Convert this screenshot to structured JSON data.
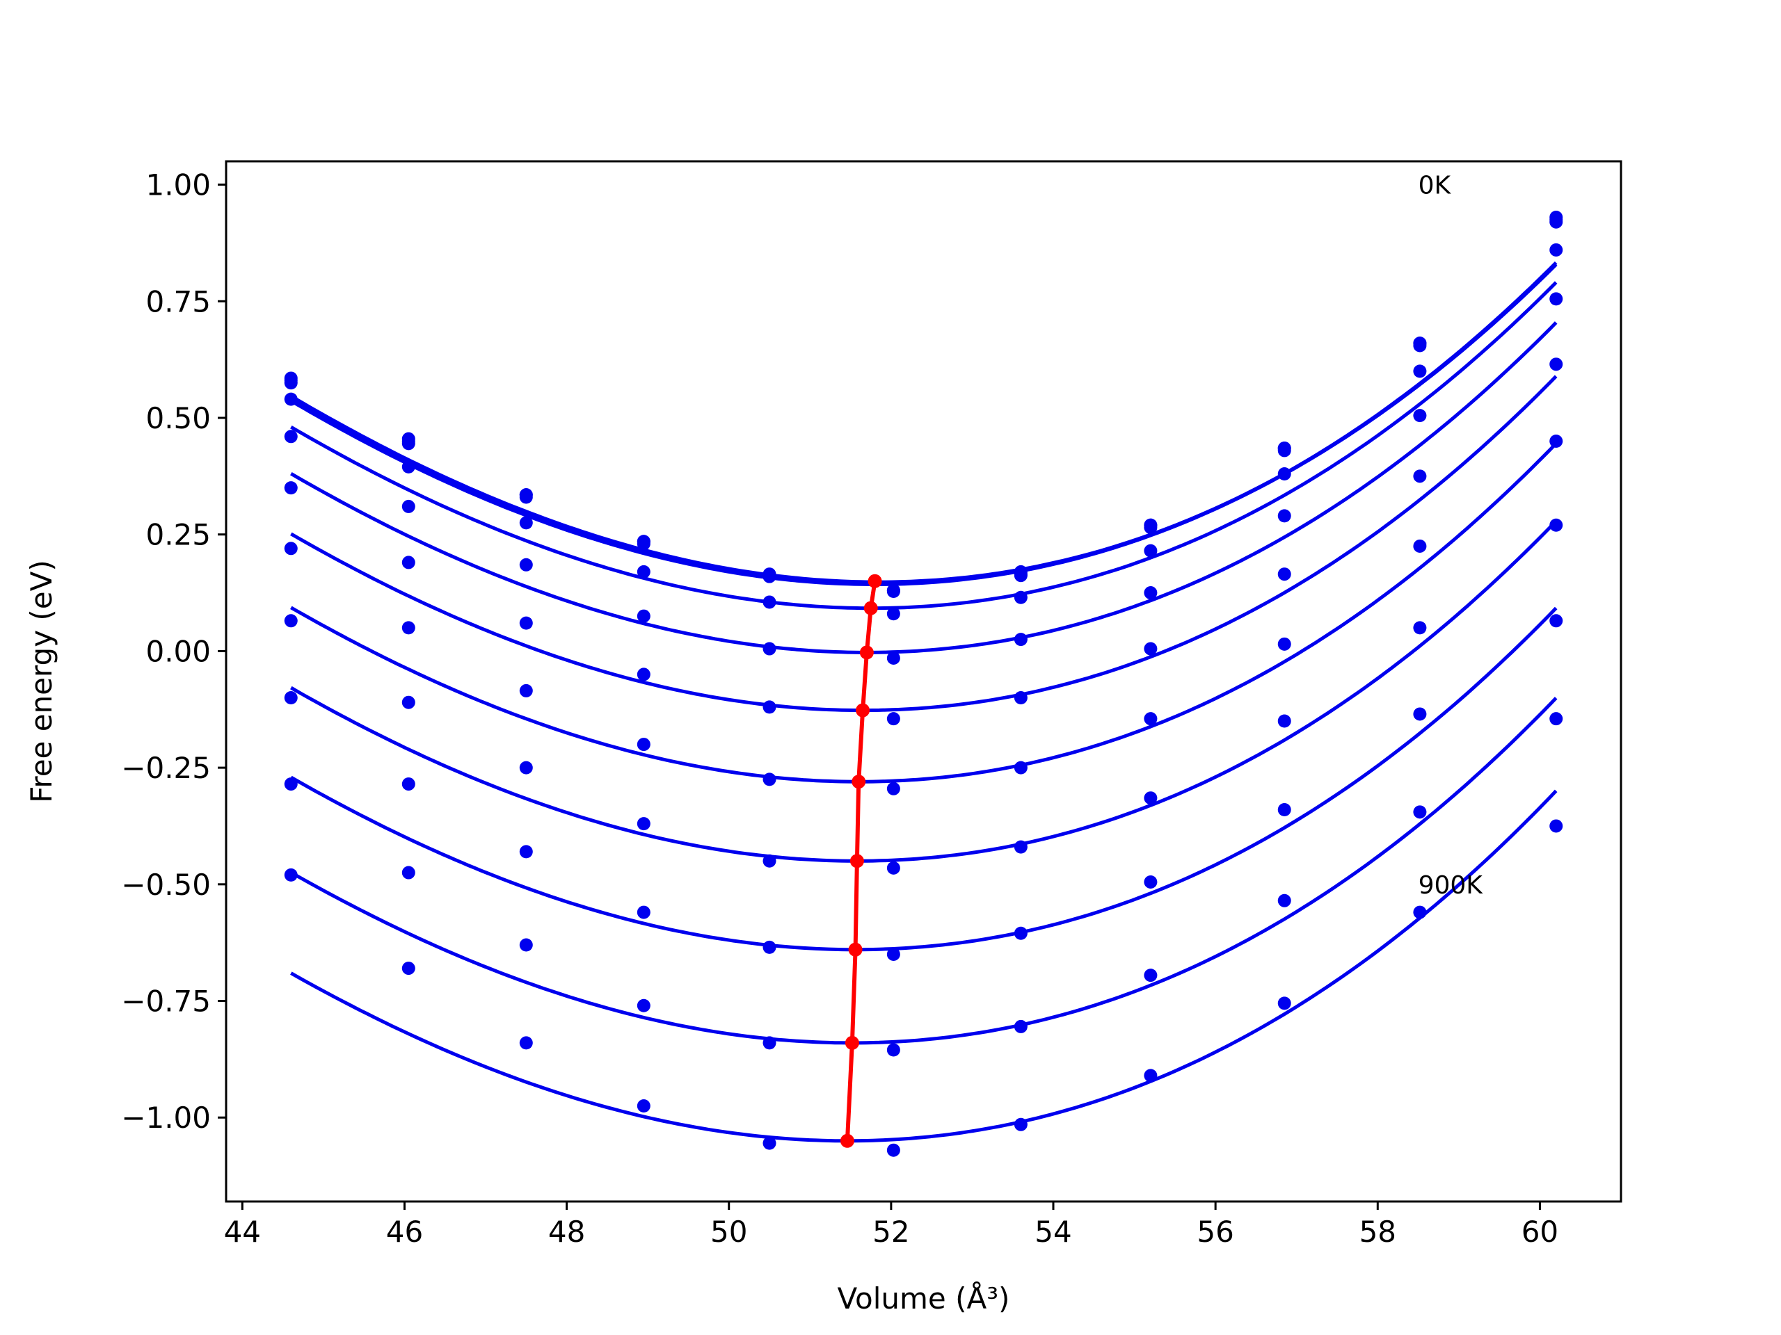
{
  "chart_data": {
    "type": "scatter",
    "title": "",
    "xlabel": "Volume (Å³)",
    "ylabel": "Free energy (eV)",
    "xlim": [
      43.8,
      61.0
    ],
    "ylim": [
      -1.18,
      1.05
    ],
    "xticks": [
      44,
      46,
      48,
      50,
      52,
      54,
      56,
      58,
      60
    ],
    "yticks": [
      -1.0,
      -0.75,
      -0.5,
      -0.25,
      0.0,
      0.25,
      0.5,
      0.75,
      1.0
    ],
    "xtick_labels": [
      "44",
      "46",
      "48",
      "50",
      "52",
      "54",
      "56",
      "58",
      "60"
    ],
    "ytick_labels": [
      "−1.00",
      "−0.75",
      "−0.50",
      "−0.25",
      "0.00",
      "0.25",
      "0.50",
      "0.75",
      "1.00"
    ],
    "grid": false,
    "legend": "none",
    "annotations": [
      {
        "text": "0K",
        "x": 58.5,
        "y": 1.0
      },
      {
        "text": "900K",
        "x": 58.5,
        "y": -0.5
      }
    ],
    "x": [
      44.6,
      46.05,
      47.5,
      48.95,
      50.5,
      52.03,
      53.6,
      55.2,
      56.85,
      58.52,
      60.2
    ],
    "series": [
      {
        "fit": {
          "v0": 51.85,
          "emin": 0.148,
          "a": 0.0086,
          "b": 0.00014
        },
        "values": [
          0.58,
          0.45,
          0.335,
          0.235,
          0.165,
          0.13,
          0.165,
          0.27,
          0.435,
          0.66,
          0.925
        ]
      },
      {
        "fit": {
          "v0": 51.84,
          "emin": 0.146,
          "a": 0.0086,
          "b": 0.00014
        },
        "values": [
          0.575,
          0.445,
          0.33,
          0.23,
          0.16,
          0.128,
          0.162,
          0.265,
          0.43,
          0.655,
          0.92
        ]
      },
      {
        "fit": {
          "v0": 51.8,
          "emin": 0.143,
          "a": 0.0086,
          "b": 0.00014
        },
        "values": [
          0.585,
          0.455,
          0.335,
          0.235,
          0.16,
          0.13,
          0.17,
          0.27,
          0.435,
          0.66,
          0.93
        ]
      },
      {
        "fit": {
          "v0": 51.75,
          "emin": 0.092,
          "a": 0.0086,
          "b": 0.00014
        },
        "values": [
          0.54,
          0.395,
          0.275,
          0.17,
          0.105,
          0.08,
          0.115,
          0.215,
          0.38,
          0.6,
          0.86
        ]
      },
      {
        "fit": {
          "v0": 51.7,
          "emin": -0.003,
          "a": 0.0086,
          "b": 0.00014
        },
        "values": [
          0.46,
          0.31,
          0.185,
          0.075,
          0.005,
          -0.015,
          0.025,
          0.125,
          0.29,
          0.505,
          0.755
        ]
      },
      {
        "fit": {
          "v0": 51.65,
          "emin": -0.127,
          "a": 0.0086,
          "b": 0.00014
        },
        "values": [
          0.35,
          0.19,
          0.06,
          -0.05,
          -0.12,
          -0.145,
          -0.1,
          0.005,
          0.165,
          0.375,
          0.615
        ]
      },
      {
        "fit": {
          "v0": 51.6,
          "emin": -0.28,
          "a": 0.0086,
          "b": 0.00014
        },
        "values": [
          0.22,
          0.05,
          -0.085,
          -0.2,
          -0.275,
          -0.295,
          -0.25,
          -0.145,
          0.015,
          0.225,
          0.45
        ]
      },
      {
        "fit": {
          "v0": 51.58,
          "emin": -0.45,
          "a": 0.0086,
          "b": 0.00014
        },
        "values": [
          0.065,
          -0.11,
          -0.25,
          -0.37,
          -0.45,
          -0.465,
          -0.42,
          -0.315,
          -0.15,
          0.05,
          0.27
        ]
      },
      {
        "fit": {
          "v0": 51.56,
          "emin": -0.64,
          "a": 0.0086,
          "b": 0.00014
        },
        "values": [
          -0.1,
          -0.285,
          -0.43,
          -0.56,
          -0.635,
          -0.65,
          -0.605,
          -0.495,
          -0.34,
          -0.135,
          0.065
        ]
      },
      {
        "fit": {
          "v0": 51.52,
          "emin": -0.84,
          "a": 0.0086,
          "b": 0.00014
        },
        "values": [
          -0.285,
          -0.475,
          -0.63,
          -0.76,
          -0.84,
          -0.855,
          -0.805,
          -0.695,
          -0.535,
          -0.345,
          -0.145
        ]
      },
      {
        "fit": {
          "v0": 51.46,
          "emin": -1.05,
          "a": 0.0086,
          "b": 0.00014
        },
        "values": [
          -0.48,
          -0.68,
          -0.84,
          -0.975,
          -1.055,
          -1.07,
          -1.015,
          -0.91,
          -0.755,
          -0.56,
          -0.375
        ]
      }
    ],
    "minima_path": {
      "x": [
        51.8,
        51.75,
        51.7,
        51.65,
        51.6,
        51.58,
        51.56,
        51.52,
        51.46
      ],
      "y": [
        0.15,
        0.092,
        -0.003,
        -0.127,
        -0.28,
        -0.45,
        -0.64,
        -0.84,
        -1.05
      ]
    },
    "colors": {
      "curve": "#0000ee",
      "points": "#0000ee",
      "minima": "#ff0000",
      "axes": "#000000"
    }
  }
}
